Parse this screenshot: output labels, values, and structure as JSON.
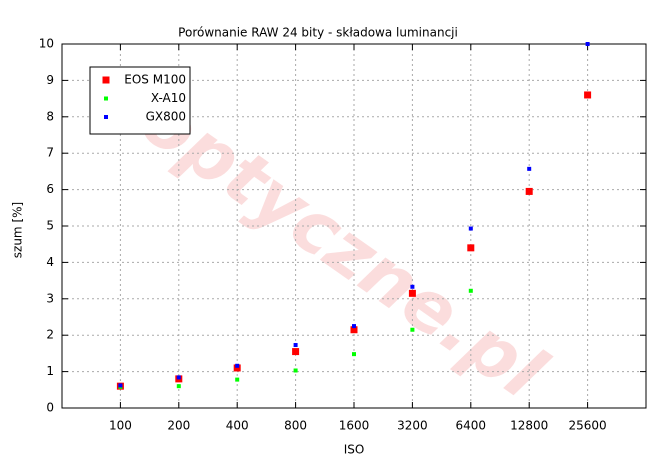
{
  "chart_data": {
    "type": "scatter",
    "title": "Porównanie RAW 24 bity - składowa luminancji",
    "x_label": "ISO",
    "y_label": "szum [%]",
    "watermark": "optyczne.pl",
    "x": [
      100,
      200,
      400,
      800,
      1600,
      3200,
      6400,
      12800,
      25600
    ],
    "xscale": "log",
    "xlim": [
      50,
      51200
    ],
    "xticks": [
      100,
      200,
      400,
      800,
      1600,
      3200,
      6400,
      12800,
      25600
    ],
    "ylim": [
      0,
      10
    ],
    "yticks": [
      0,
      1,
      2,
      3,
      4,
      5,
      6,
      7,
      8,
      9,
      10
    ],
    "grid": true,
    "legend": "upper-left",
    "series": [
      {
        "name": "EOS M100",
        "color": "#ff0000",
        "values": [
          0.6,
          0.8,
          1.1,
          1.55,
          2.15,
          3.15,
          4.4,
          5.95,
          8.6
        ]
      },
      {
        "name": "X-A10",
        "color": "#00ff00",
        "values": [
          0.58,
          0.6,
          0.78,
          1.03,
          1.48,
          2.15,
          3.22,
          null,
          null
        ]
      },
      {
        "name": "GX800",
        "color": "#0000ff",
        "values": [
          0.62,
          0.84,
          1.16,
          1.73,
          2.25,
          3.33,
          4.93,
          6.57,
          10.0
        ]
      }
    ]
  }
}
